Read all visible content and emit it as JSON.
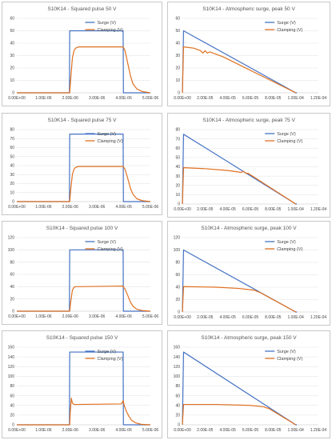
{
  "colors": {
    "surge": "#4472C4",
    "clamping": "#E07020",
    "grid": "#e2e2e2",
    "axis": "#bfbfbf"
  },
  "chart_data": [
    {
      "type": "line",
      "title": "S10K14 - Squared pulse 50 V",
      "x_ticks": [
        "0.00E+00",
        "1.00E-06",
        "2.00E-06",
        "3.00E-06",
        "4.00E-06",
        "5.00E-06"
      ],
      "y_ticks": [
        "0",
        "10",
        "20",
        "30",
        "40",
        "50",
        "60"
      ],
      "xlim": [
        0,
        5e-06
      ],
      "ylim": [
        0,
        60
      ],
      "legend_position": "top-right",
      "series": [
        {
          "name": "Surge (V)",
          "x": [
            0,
            1.97e-06,
            1.98e-06,
            3.98e-06,
            3.99e-06,
            5e-06
          ],
          "y": [
            0,
            0,
            50,
            50,
            0,
            0
          ]
        },
        {
          "name": "Clamping (V)",
          "x": [
            0,
            1.98e-06,
            2.02e-06,
            2.08e-06,
            2.14e-06,
            2.2e-06,
            2.3e-06,
            3.98e-06,
            4.05e-06,
            4.15e-06,
            4.25e-06,
            4.35e-06,
            4.5e-06,
            4.7e-06,
            5e-06
          ],
          "y": [
            0,
            0,
            12,
            28,
            34,
            36,
            37,
            37,
            34,
            24,
            14,
            7,
            3,
            1,
            0
          ]
        }
      ]
    },
    {
      "type": "line",
      "title": "S10K14 - Atmospheric surge, peak 50 V",
      "x_ticks": [
        "0.00E+00",
        "2.00E-05",
        "4.00E-05",
        "6.00E-05",
        "8.00E-05",
        "1.00E-04",
        "1.20E-04"
      ],
      "y_ticks": [
        "0",
        "10",
        "20",
        "30",
        "40",
        "50",
        "60"
      ],
      "xlim": [
        0,
        0.00012
      ],
      "ylim": [
        0,
        60
      ],
      "legend_position": "top-right",
      "series": [
        {
          "name": "Surge (V)",
          "x": [
            0,
            1e-06,
            0.0001,
            0.000101
          ],
          "y": [
            0,
            50,
            0,
            0
          ]
        },
        {
          "name": "Clamping (V)",
          "x": [
            0,
            1e-06,
            1e-05,
            1.6e-05,
            1.8e-05,
            2e-05,
            2.2e-05,
            2.4e-05,
            3.6e-05,
            0.0001
          ],
          "y": [
            0,
            37,
            36,
            34,
            32,
            34,
            32,
            33,
            29,
            0
          ]
        }
      ]
    },
    {
      "type": "line",
      "title": "S10K14 - Squared pulse 75 V",
      "x_ticks": [
        "0.00E+00",
        "1.00E-06",
        "2.00E-06",
        "3.00E-06",
        "4.00E-06",
        "5.00E-06"
      ],
      "y_ticks": [
        "0",
        "10",
        "20",
        "30",
        "40",
        "50",
        "60",
        "70",
        "80"
      ],
      "xlim": [
        0,
        5e-06
      ],
      "ylim": [
        0,
        80
      ],
      "legend_position": "top-right",
      "series": [
        {
          "name": "Surge (V)",
          "x": [
            0,
            1.97e-06,
            1.98e-06,
            3.98e-06,
            3.99e-06,
            5e-06
          ],
          "y": [
            0,
            0,
            75,
            75,
            0,
            0
          ]
        },
        {
          "name": "Clamping (V)",
          "x": [
            0,
            1.98e-06,
            2.02e-06,
            2.08e-06,
            2.14e-06,
            2.2e-06,
            2.3e-06,
            3.98e-06,
            4.05e-06,
            4.15e-06,
            4.25e-06,
            4.35e-06,
            4.5e-06,
            4.7e-06,
            5e-06
          ],
          "y": [
            0,
            0,
            14,
            30,
            36,
            38,
            39,
            39,
            36,
            26,
            15,
            8,
            3,
            1,
            0
          ]
        }
      ]
    },
    {
      "type": "line",
      "title": "S10K14 - Atmospheric surge, peak 75 V",
      "x_ticks": [
        "0.00E+00",
        "2.00E-05",
        "4.00E-05",
        "6.00E-05",
        "8.00E-05",
        "1.00E-04",
        "1.20E-04"
      ],
      "y_ticks": [
        "0",
        "10",
        "20",
        "30",
        "40",
        "50",
        "60",
        "70",
        "80"
      ],
      "xlim": [
        0,
        0.00012
      ],
      "ylim": [
        0,
        80
      ],
      "legend_position": "top-right",
      "series": [
        {
          "name": "Surge (V)",
          "x": [
            0,
            1e-06,
            0.0001,
            0.000101
          ],
          "y": [
            0,
            75,
            0,
            0
          ]
        },
        {
          "name": "Clamping (V)",
          "x": [
            0,
            1e-06,
            2e-05,
            4e-05,
            5.2e-05,
            5.4e-05,
            5.6e-05,
            5.8e-05,
            0.0001
          ],
          "y": [
            0,
            39,
            38,
            36,
            34,
            35,
            33,
            33,
            0
          ]
        }
      ]
    },
    {
      "type": "line",
      "title": "S10K14 - Squared pulse 100 V",
      "x_ticks": [
        "0.00E+00",
        "1.00E-06",
        "2.00E-06",
        "3.00E-06",
        "4.00E-06",
        "5.00E-06"
      ],
      "y_ticks": [
        "0",
        "20",
        "40",
        "60",
        "80",
        "100",
        "120"
      ],
      "xlim": [
        0,
        5e-06
      ],
      "ylim": [
        0,
        120
      ],
      "legend_position": "top-right",
      "series": [
        {
          "name": "Surge (V)",
          "x": [
            0,
            1.97e-06,
            1.98e-06,
            3.98e-06,
            3.99e-06,
            5e-06
          ],
          "y": [
            0,
            0,
            100,
            100,
            0,
            0
          ]
        },
        {
          "name": "Clamping (V)",
          "x": [
            0,
            1.98e-06,
            2.02e-06,
            2.08e-06,
            2.14e-06,
            2.2e-06,
            2.3e-06,
            3.96e-06,
            3.98e-06,
            4.05e-06,
            4.15e-06,
            4.25e-06,
            4.35e-06,
            4.5e-06,
            4.7e-06,
            5e-06
          ],
          "y": [
            0,
            0,
            16,
            34,
            39,
            40,
            40,
            41,
            40,
            36,
            26,
            15,
            8,
            3,
            1,
            0
          ]
        }
      ]
    },
    {
      "type": "line",
      "title": "S10K14 - Atmospheric surge, peak 100 V",
      "x_ticks": [
        "0.00E+00",
        "2.00E-05",
        "4.00E-05",
        "6.00E-05",
        "8.00E-05",
        "1.00E-04",
        "1.20E-04"
      ],
      "y_ticks": [
        "0",
        "20",
        "40",
        "60",
        "80",
        "100",
        "120"
      ],
      "xlim": [
        0,
        0.00012
      ],
      "ylim": [
        0,
        120
      ],
      "legend_position": "top-right",
      "series": [
        {
          "name": "Surge (V)",
          "x": [
            0,
            1e-06,
            0.0001,
            0.000101
          ],
          "y": [
            0,
            100,
            0,
            0
          ]
        },
        {
          "name": "Clamping (V)",
          "x": [
            0,
            1e-06,
            3e-05,
            5e-05,
            6.4e-05,
            6.6e-05,
            6.8e-05,
            0.0001
          ],
          "y": [
            0,
            41,
            40,
            38,
            35,
            33,
            32,
            0
          ]
        }
      ]
    },
    {
      "type": "line",
      "title": "S10K14 - Squared pulse 150 V",
      "x_ticks": [
        "0.00E+00",
        "1.00E-06",
        "2.00E-06",
        "3.00E-06",
        "4.00E-06",
        "5.00E-06"
      ],
      "y_ticks": [
        "0",
        "20",
        "40",
        "60",
        "80",
        "100",
        "120",
        "140",
        "160"
      ],
      "xlim": [
        0,
        5e-06
      ],
      "ylim": [
        0,
        160
      ],
      "legend_position": "top-right",
      "series": [
        {
          "name": "Surge (V)",
          "x": [
            0,
            1.97e-06,
            1.98e-06,
            3.98e-06,
            3.99e-06,
            5e-06
          ],
          "y": [
            0,
            0,
            150,
            150,
            0,
            0
          ]
        },
        {
          "name": "Clamping (V)",
          "x": [
            0,
            1.98e-06,
            2e-06,
            2.04e-06,
            2.08e-06,
            2.14e-06,
            2.25e-06,
            3.9e-06,
            3.95e-06,
            3.98e-06,
            4.02e-06,
            4.1e-06,
            4.2e-06,
            4.3e-06,
            4.45e-06,
            4.65e-06,
            5e-06
          ],
          "y": [
            0,
            0,
            25,
            55,
            45,
            42,
            42,
            43,
            46,
            50,
            40,
            28,
            17,
            9,
            4,
            1,
            0
          ]
        }
      ]
    },
    {
      "type": "line",
      "title": "S10K14 - Atmospheric surge, peak 150 V",
      "x_ticks": [
        "0.00E+00",
        "2.00E-05",
        "4.00E-05",
        "6.00E-05",
        "8.00E-05",
        "1.00E-04",
        "1.20E-04"
      ],
      "y_ticks": [
        "0",
        "20",
        "40",
        "60",
        "80",
        "100",
        "120",
        "140",
        "160"
      ],
      "xlim": [
        0,
        0.00012
      ],
      "ylim": [
        0,
        160
      ],
      "legend_position": "top-right",
      "series": [
        {
          "name": "Surge (V)",
          "x": [
            0,
            1e-06,
            0.0001,
            0.000101
          ],
          "y": [
            0,
            150,
            0,
            0
          ]
        },
        {
          "name": "Clamping (V)",
          "x": [
            0,
            1e-06,
            3e-05,
            6e-05,
            7.2e-05,
            7.4e-05,
            7.6e-05,
            0.0001
          ],
          "y": [
            0,
            42,
            42,
            40,
            37,
            35,
            34,
            0
          ]
        }
      ]
    }
  ]
}
